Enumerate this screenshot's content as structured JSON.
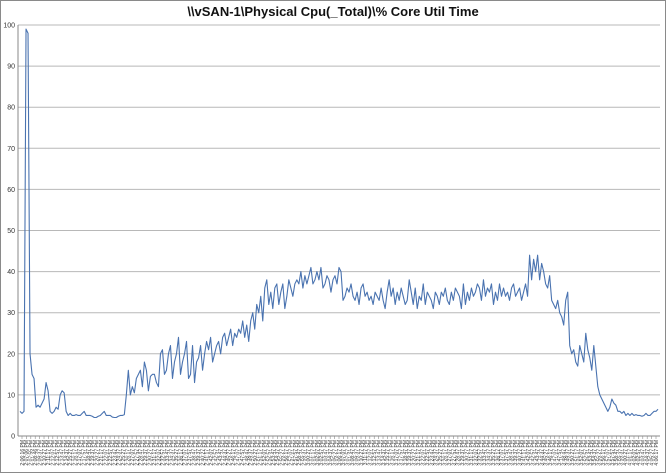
{
  "chart_data": {
    "type": "line",
    "title": "\\\\vSAN-1\\Physical Cpu(_Total)\\% Core Util Time",
    "ylim": [
      0,
      100
    ],
    "yticks": [
      0,
      10,
      20,
      30,
      40,
      50,
      60,
      70,
      80,
      90,
      100
    ],
    "grid": "horizontal",
    "legend": "none",
    "line_color": "#4a73b0",
    "xtick_labels": [
      "2:06:16 PM",
      "2:07:06 PM",
      "2:07:55 PM",
      "2:08:46 PM",
      "2:09:37 PM",
      "2:10:27 PM",
      "2:11:17 PM",
      "2:12:07 PM",
      "2:12:57 PM",
      "2:13:47 PM",
      "2:14:37 PM",
      "2:15:27 PM",
      "2:16:17 PM",
      "2:17:07 PM",
      "2:17:57 PM",
      "2:18:47 PM",
      "2:19:37 PM",
      "2:20:27 PM",
      "2:21:17 PM",
      "2:22:07 PM",
      "2:22:57 PM",
      "2:23:47 PM",
      "2:24:37 PM",
      "2:25:27 PM",
      "2:26:17 PM",
      "2:27:07 PM",
      "2:27:57 PM",
      "2:28:47 PM",
      "2:29:37 PM",
      "2:30:27 PM",
      "2:31:17 PM",
      "2:32:07 PM",
      "2:32:57 PM",
      "2:33:47 PM",
      "2:34:37 PM",
      "2:35:27 PM",
      "2:36:17 PM",
      "2:37:07 PM",
      "2:37:57 PM",
      "2:38:47 PM",
      "2:39:37 PM",
      "2:40:27 PM",
      "2:41:17 PM",
      "2:42:07 PM",
      "2:42:57 PM",
      "2:43:47 PM",
      "2:44:37 PM",
      "2:45:27 PM",
      "2:46:17 PM",
      "2:47:07 PM",
      "2:47:57 PM",
      "2:48:47 PM",
      "2:49:37 PM",
      "2:50:27 PM",
      "2:51:17 PM",
      "2:52:07 PM",
      "2:52:57 PM",
      "2:53:47 PM",
      "2:54:37 PM",
      "2:55:27 PM",
      "2:56:17 PM",
      "2:57:07 PM",
      "2:57:57 PM",
      "2:58:47 PM",
      "2:59:37 PM",
      "3:00:27 PM",
      "3:01:17 PM",
      "3:02:07 PM",
      "3:02:57 PM",
      "3:03:47 PM",
      "3:04:37 PM",
      "3:05:27 PM",
      "3:06:17 PM",
      "3:07:07 PM",
      "3:07:57 PM",
      "3:08:47 PM",
      "3:09:37 PM",
      "3:10:27 PM",
      "3:11:17 PM",
      "3:12:07 PM",
      "3:12:57 PM",
      "3:13:47 PM",
      "3:14:37 PM",
      "3:15:27 PM",
      "3:16:17 PM",
      "3:17:07 PM",
      "3:17:57 PM",
      "3:18:47 PM",
      "3:19:37 PM",
      "3:20:27 PM",
      "3:21:17 PM",
      "3:22:07 PM",
      "3:22:57 PM",
      "3:23:47 PM",
      "3:24:37 PM",
      "3:25:27 PM",
      "3:26:17 PM",
      "3:27:07 PM",
      "3:27:57 PM",
      "3:28:47 PM",
      "3:29:37 PM",
      "3:30:27 PM",
      "3:31:17 PM",
      "3:32:07 PM",
      "3:32:57 PM",
      "3:33:47 PM",
      "3:34:37 PM",
      "3:35:27 PM",
      "3:36:17 PM",
      "3:37:07 PM",
      "3:37:57 PM",
      "3:38:47 PM",
      "3:39:37 PM",
      "3:40:27 PM",
      "3:41:17 PM",
      "3:42:07 PM",
      "3:42:57 PM",
      "3:43:47 PM",
      "3:44:37 PM",
      "3:45:27 PM",
      "3:46:17 PM",
      "3:47:07 PM",
      "3:47:57 PM",
      "3:48:47 PM",
      "3:49:37 PM",
      "3:50:27 PM",
      "3:51:17 PM",
      "3:52:07 PM",
      "3:52:57 PM",
      "3:53:47 PM",
      "3:54:37 PM",
      "3:55:27 PM",
      "3:56:17 PM",
      "3:57:07 PM",
      "3:57:57 PM",
      "3:58:47 PM",
      "3:59:37 PM",
      "4:00:27 PM",
      "4:01:17 PM",
      "4:02:07 PM",
      "4:02:57 PM",
      "4:03:47 PM",
      "4:04:37 PM",
      "4:05:27 PM",
      "4:06:17 PM"
    ],
    "values": [
      6,
      5.5,
      6,
      99,
      98,
      20,
      15,
      14,
      7,
      7.5,
      7,
      8,
      9,
      13,
      11,
      6,
      5.5,
      6,
      7,
      6.5,
      10,
      11,
      10.5,
      6,
      5,
      5.5,
      5,
      5,
      5.2,
      5,
      5,
      5.5,
      6,
      5,
      5,
      5,
      4.8,
      4.5,
      4.5,
      4.8,
      5,
      5.5,
      6,
      5,
      5,
      5,
      4.6,
      4.5,
      4.5,
      4.8,
      5,
      5,
      5.2,
      10,
      16,
      10,
      12,
      10.5,
      14,
      15,
      16,
      12,
      18,
      16,
      11,
      14.5,
      15,
      15,
      13,
      12,
      20,
      21,
      15,
      16,
      20,
      22,
      14,
      18,
      20,
      24,
      15,
      18,
      20,
      23,
      14,
      15,
      22,
      13,
      18,
      19,
      22,
      16,
      20,
      23,
      21,
      24,
      18,
      20,
      22,
      23,
      20,
      24,
      25,
      22,
      24,
      26,
      22,
      25,
      24,
      26,
      25,
      28,
      24,
      27,
      23,
      28,
      30,
      26,
      32,
      30,
      34,
      28,
      36,
      38,
      32,
      35,
      31,
      36,
      37,
      32,
      35,
      37,
      31,
      34,
      38,
      36,
      34,
      37,
      38,
      37,
      40,
      36,
      39,
      37,
      39,
      41,
      37,
      38,
      40,
      38,
      41,
      36,
      37,
      39,
      38,
      35,
      38,
      39,
      37,
      41,
      40,
      33,
      34,
      36,
      35,
      37,
      34,
      33,
      35,
      32,
      36,
      37,
      34,
      35,
      33,
      34,
      32,
      35,
      34,
      33,
      36,
      33,
      31,
      35,
      38,
      34,
      36,
      32,
      35,
      33,
      36,
      34,
      32,
      33,
      38,
      35,
      32,
      36,
      31,
      34,
      33,
      37,
      32,
      35,
      34,
      33,
      31,
      35,
      34,
      32,
      35,
      34,
      36,
      33,
      32,
      35,
      33,
      36,
      35,
      34,
      31,
      37,
      32,
      35,
      33,
      36,
      34,
      35,
      37,
      36,
      33,
      38,
      34,
      36,
      35,
      37,
      32,
      35,
      33,
      37,
      34,
      36,
      34,
      35,
      33,
      36,
      37,
      34,
      35,
      36,
      33,
      35,
      37,
      34,
      44,
      38,
      43,
      40,
      44,
      38,
      42,
      40,
      37,
      36,
      39,
      33,
      32,
      31,
      33,
      30,
      29,
      27,
      33,
      35,
      22,
      20,
      21,
      18,
      17,
      22,
      20,
      18,
      25,
      21,
      19,
      16,
      22,
      17,
      12,
      10,
      9,
      8,
      7,
      6,
      7,
      9,
      8,
      7.5,
      6,
      6,
      5.5,
      6,
      5,
      5.5,
      5,
      5.5,
      5,
      5.2,
      5,
      5,
      4.8,
      5,
      5.5,
      5,
      5,
      5.5,
      6,
      6,
      6.5
    ]
  }
}
